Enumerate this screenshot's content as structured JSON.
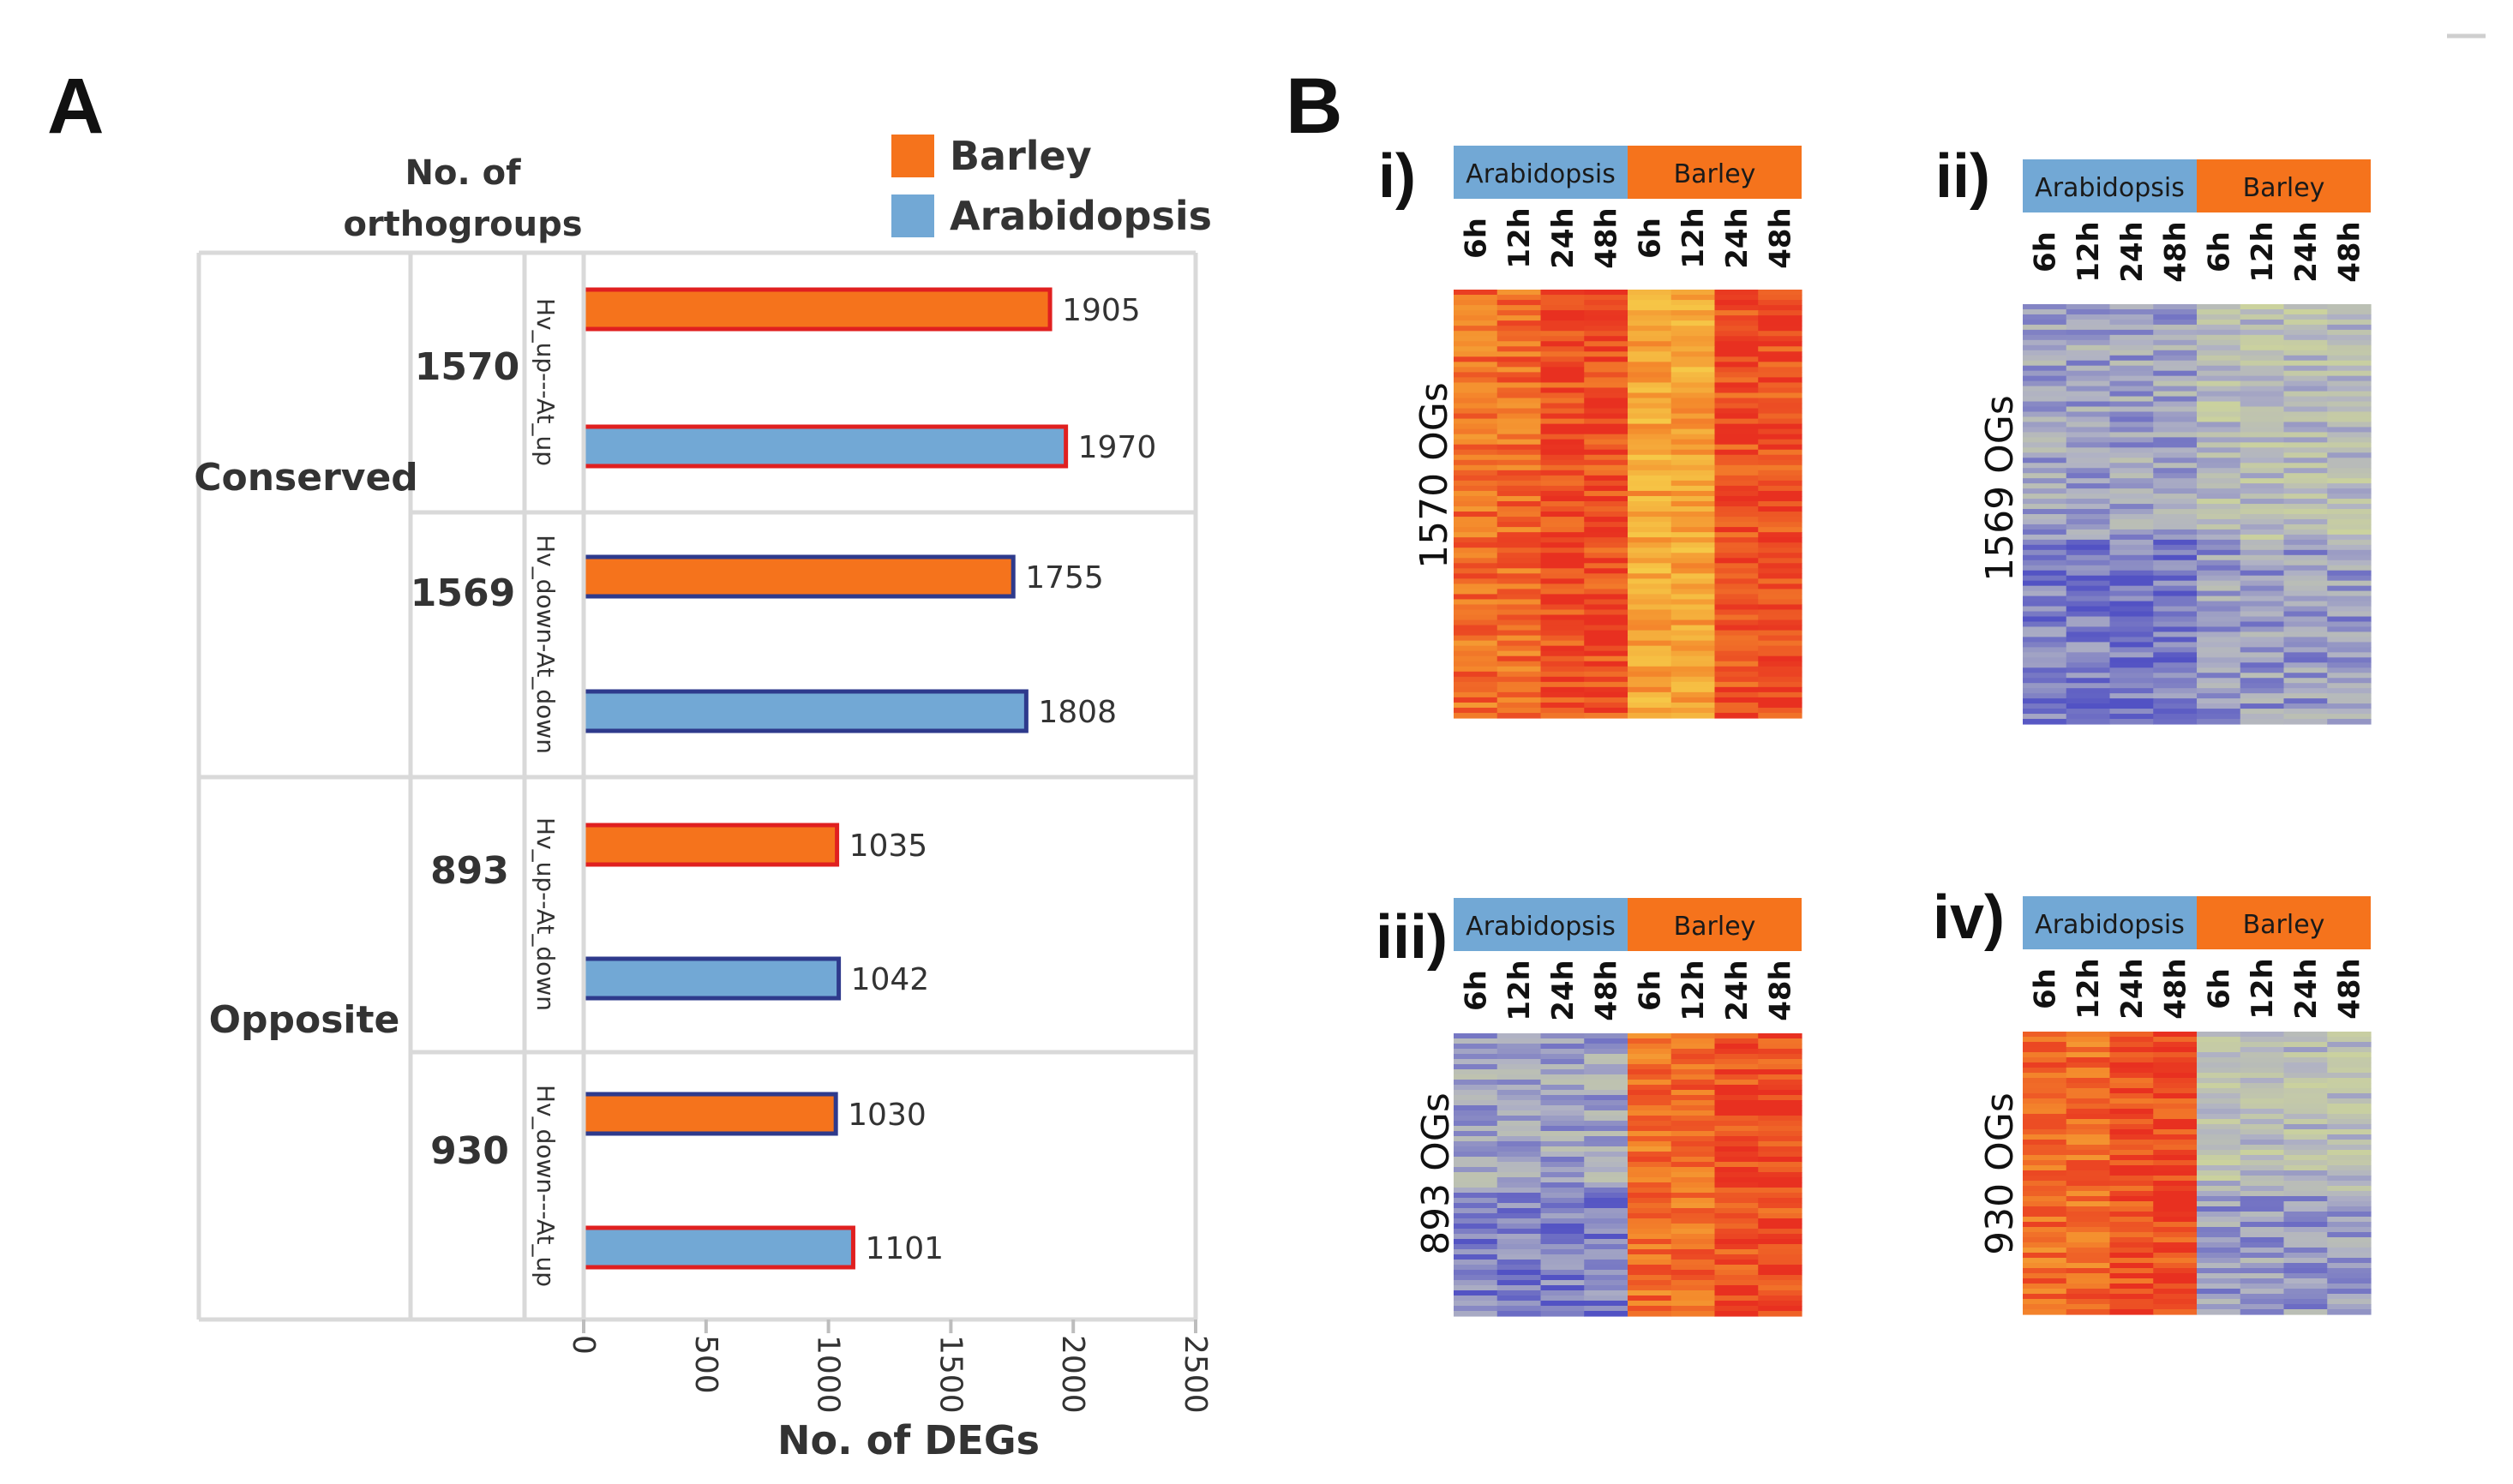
{
  "panel_a": {
    "letter": "A",
    "orthogroup_header_line1": "No. of",
    "orthogroup_header_line2": "orthogroups",
    "categories": [
      {
        "label": "Conserved",
        "groups": [
          {
            "count": "1570",
            "comparison": "Hv_up---At_up"
          },
          {
            "count": "1569",
            "comparison": "Hv_down-At_down"
          }
        ]
      },
      {
        "label": "Opposite",
        "groups": [
          {
            "count": "893",
            "comparison": "Hv_up--At_down"
          },
          {
            "count": "930",
            "comparison": "Hv_down---At_up"
          }
        ]
      }
    ]
  },
  "chart_data": {
    "type": "bar",
    "orientation": "horizontal",
    "xlabel": "No. of DEGs",
    "xlim": [
      0,
      2500
    ],
    "xticks": [
      "0",
      "500",
      "1000",
      "1500",
      "2000",
      "2500"
    ],
    "legend": [
      {
        "name": "Barley",
        "color": "#f5731c"
      },
      {
        "name": "Arabidopsis",
        "color": "#72a8d5"
      }
    ],
    "bars": [
      {
        "comparison": "Hv_up---At_up",
        "species": "Barley",
        "value": 1905,
        "outline": "#e02020"
      },
      {
        "comparison": "Hv_up---At_up",
        "species": "Arabidopsis",
        "value": 1970,
        "outline": "#e02020"
      },
      {
        "comparison": "Hv_down-At_down",
        "species": "Barley",
        "value": 1755,
        "outline": "#2e3a8c"
      },
      {
        "comparison": "Hv_down-At_down",
        "species": "Arabidopsis",
        "value": 1808,
        "outline": "#2e3a8c"
      },
      {
        "comparison": "Hv_up--At_down",
        "species": "Barley",
        "value": 1035,
        "outline": "#e02020"
      },
      {
        "comparison": "Hv_up--At_down",
        "species": "Arabidopsis",
        "value": 1042,
        "outline": "#2e3a8c"
      },
      {
        "comparison": "Hv_down---At_up",
        "species": "Barley",
        "value": 1030,
        "outline": "#2e3a8c"
      },
      {
        "comparison": "Hv_down---At_up",
        "species": "Arabidopsis",
        "value": 1101,
        "outline": "#e02020"
      }
    ]
  },
  "panel_b": {
    "letter": "B",
    "header_species": [
      "Arabidopsis",
      "Barley"
    ],
    "timepoints": [
      "6h",
      "12h",
      "24h",
      "48h"
    ],
    "heatmaps": [
      {
        "label": "i)",
        "og_label": "1570 OGs",
        "pattern": "up_up"
      },
      {
        "label": "ii)",
        "og_label": "1569 OGs",
        "pattern": "down_down"
      },
      {
        "label": "iii)",
        "og_label": "893 OGs",
        "pattern": "down_up"
      },
      {
        "label": "iv)",
        "og_label": "930 OGs",
        "pattern": "up_down"
      }
    ]
  }
}
